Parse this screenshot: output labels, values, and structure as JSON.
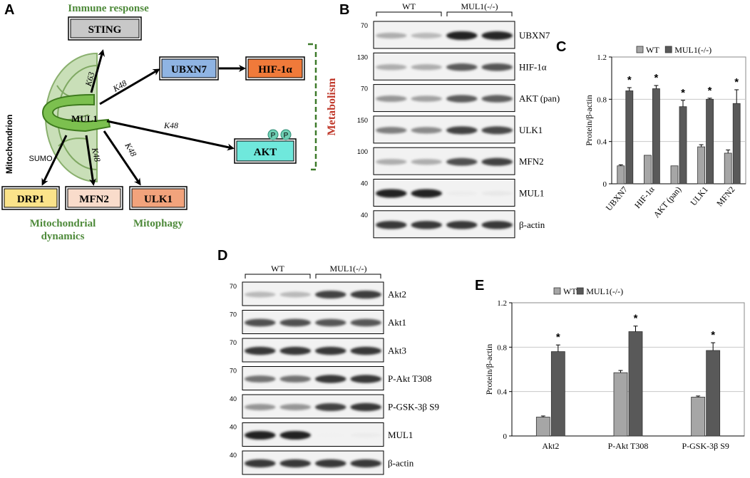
{
  "panel_a": {
    "letter": "A",
    "mitochondrion_label": "Mitochondrion",
    "center_label": "MUL1",
    "immune_response": "Immune response",
    "metabolism": "Metabolism",
    "mito_dynamics_line1": "Mitochondrial",
    "mito_dynamics_line2": "dynamics",
    "mitophagy": "Mitophagy",
    "boxes": {
      "sting": "STING",
      "ubxn7": "UBXN7",
      "hif": "HIF-1α",
      "akt": "AKT",
      "drp1": "DRP1",
      "mfn2": "MFN2",
      "ulk1": "ULK1"
    },
    "phospho": "P",
    "edge_labels": {
      "sting": "K63",
      "ubxn7": "K48",
      "akt": "K48",
      "drp1": "SUMO",
      "mfn2": "K48",
      "ulk1": "K48"
    },
    "colors": {
      "sting": "#c8c8c8",
      "ubxn7": "#8fb4e3",
      "hif": "#f07a3a",
      "akt": "#6fe8dc",
      "drp1": "#fbe38a",
      "mfn2": "#f9dccb",
      "ulk1": "#f2a37c",
      "green_text": "#4e8a3a",
      "metabolism_text": "#c0392b",
      "bracket": "#3d7a2a"
    }
  },
  "panel_b": {
    "letter": "B",
    "groups": [
      "WT",
      "MUL1(-/-)"
    ],
    "rows": [
      {
        "marker": "70",
        "label": "UBXN7",
        "intensities": [
          0.35,
          0.3,
          0.95,
          0.92
        ]
      },
      {
        "marker": "130",
        "label": "HIF-1α",
        "intensities": [
          0.35,
          0.35,
          0.7,
          0.72
        ]
      },
      {
        "marker": "70",
        "label": "AKT (pan)",
        "intensities": [
          0.45,
          0.4,
          0.7,
          0.68
        ]
      },
      {
        "marker": "150",
        "label": "ULK1",
        "intensities": [
          0.55,
          0.5,
          0.8,
          0.78
        ]
      },
      {
        "marker": "100",
        "label": "MFN2",
        "intensities": [
          0.35,
          0.35,
          0.75,
          0.8
        ]
      },
      {
        "marker": "40",
        "label": "MUL1",
        "intensities": [
          0.95,
          0.95,
          0.08,
          0.1
        ]
      },
      {
        "marker": "40",
        "label": "β-actin",
        "intensities": [
          0.85,
          0.85,
          0.85,
          0.85
        ]
      }
    ]
  },
  "panel_d": {
    "letter": "D",
    "groups": [
      "WT",
      "MUL1(-/-)"
    ],
    "rows": [
      {
        "marker": "70",
        "label": "Akt2",
        "intensities": [
          0.3,
          0.3,
          0.8,
          0.82
        ]
      },
      {
        "marker": "70",
        "label": "Akt1",
        "intensities": [
          0.75,
          0.75,
          0.72,
          0.72
        ]
      },
      {
        "marker": "70",
        "label": "Akt3",
        "intensities": [
          0.85,
          0.85,
          0.85,
          0.85
        ]
      },
      {
        "marker": "70",
        "label": "P-Akt T308",
        "intensities": [
          0.6,
          0.6,
          0.85,
          0.85
        ]
      },
      {
        "marker": "40",
        "label": "P-GSK-3β S9",
        "intensities": [
          0.45,
          0.45,
          0.8,
          0.85
        ]
      },
      {
        "marker": "40",
        "label": "MUL1",
        "intensities": [
          0.95,
          0.95,
          0.06,
          0.08
        ]
      },
      {
        "marker": "40",
        "label": "β-actin",
        "intensities": [
          0.85,
          0.85,
          0.85,
          0.85
        ]
      }
    ]
  },
  "chart_data": [
    {
      "panel": "C",
      "type": "bar",
      "ylabel": "Protein/β-actin",
      "ylim": [
        0,
        1.2
      ],
      "yticks": [
        "0",
        "0.4",
        "0.8",
        "1.2"
      ],
      "categories": [
        "UBXN7",
        "HIF-1α",
        "AKT (pan)",
        "ULK1",
        "MFN2"
      ],
      "series": [
        {
          "name": "WT",
          "color": "#a6a6a6",
          "values": [
            0.17,
            0.27,
            0.17,
            0.35,
            0.29
          ],
          "errors": [
            0.01,
            0.0,
            0.0,
            0.02,
            0.03
          ]
        },
        {
          "name": "MUL1(-/-)",
          "color": "#595959",
          "values": [
            0.88,
            0.9,
            0.73,
            0.8,
            0.76
          ],
          "errors": [
            0.03,
            0.03,
            0.06,
            0.01,
            0.13
          ]
        }
      ],
      "significance": [
        "*",
        "*",
        "*",
        "*",
        "*"
      ],
      "grid": true,
      "legend": "top"
    },
    {
      "panel": "E",
      "type": "bar",
      "ylabel": "Protein/β-actin",
      "ylim": [
        0,
        1.2
      ],
      "yticks": [
        "0",
        "0.4",
        "0.8",
        "1.2"
      ],
      "categories": [
        "Akt2",
        "P-Akt T308",
        "P-GSK-3β S9"
      ],
      "series": [
        {
          "name": "WT",
          "color": "#a6a6a6",
          "values": [
            0.17,
            0.57,
            0.35
          ],
          "errors": [
            0.01,
            0.02,
            0.01
          ]
        },
        {
          "name": "MUL1(-/-)",
          "color": "#595959",
          "values": [
            0.76,
            0.94,
            0.77
          ],
          "errors": [
            0.06,
            0.05,
            0.07
          ]
        }
      ],
      "significance": [
        "*",
        "*",
        "*"
      ],
      "grid": true,
      "legend": "top"
    }
  ]
}
